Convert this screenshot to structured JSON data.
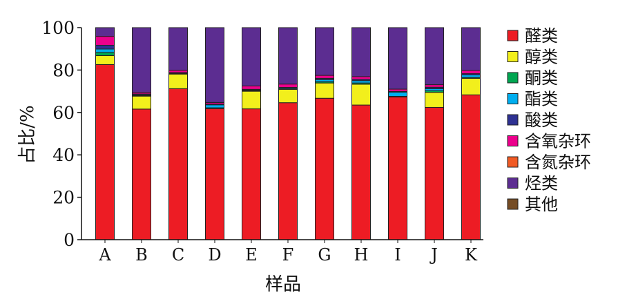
{
  "chart_data": {
    "type": "bar",
    "stacked": true,
    "title": "",
    "xlabel": "样品",
    "ylabel": "占比/%",
    "ylim": [
      0,
      100
    ],
    "yticks": [
      0,
      20,
      40,
      60,
      80,
      100
    ],
    "grid": false,
    "legend_position": "right",
    "categories": [
      "A",
      "B",
      "C",
      "D",
      "E",
      "F",
      "G",
      "H",
      "I",
      "J",
      "K"
    ],
    "series": [
      {
        "name": "醛类",
        "color": "#ed1c24",
        "values": [
          82.6,
          61.6,
          71.2,
          61.8,
          61.7,
          64.6,
          66.7,
          63.5,
          67.3,
          62.4,
          68.3
        ]
      },
      {
        "name": "醇类",
        "color": "#f2ef1c",
        "values": [
          4.2,
          6.1,
          6.9,
          0,
          8.3,
          6.3,
          7.2,
          9.8,
          0,
          7.1,
          7.8
        ]
      },
      {
        "name": "酮类",
        "color": "#00a651",
        "values": [
          1.5,
          0.3,
          0.2,
          0.4,
          0.3,
          0.2,
          0.6,
          0.6,
          0.3,
          0.7,
          0.4
        ]
      },
      {
        "name": "酯类",
        "color": "#00aeef",
        "values": [
          1.6,
          0.3,
          0.2,
          1.4,
          0.3,
          0.4,
          1.0,
          1.1,
          2.0,
          1.0,
          1.2
        ]
      },
      {
        "name": "酸类",
        "color": "#2e3192",
        "values": [
          1.8,
          0.4,
          0.3,
          0.4,
          0.3,
          0.3,
          0.6,
          0.6,
          0.3,
          0.7,
          0.6
        ]
      },
      {
        "name": "含氧杂环",
        "color": "#ec008c",
        "values": [
          4.2,
          0.7,
          1.1,
          0.7,
          1.6,
          1.6,
          1.4,
          1.3,
          1.1,
          1.2,
          1.5
        ]
      },
      {
        "name": "含氮杂环",
        "color": "#f15a24",
        "values": [
          0,
          0,
          0,
          0,
          0,
          0,
          0,
          0,
          0,
          0,
          0
        ]
      },
      {
        "name": "烃类",
        "color": "#5c2d91",
        "values": [
          4.1,
          30.6,
          20.1,
          35.3,
          27.5,
          26.6,
          22.5,
          23.1,
          29.0,
          26.9,
          20.2
        ]
      },
      {
        "name": "其他",
        "color": "#754c24",
        "values": [
          0,
          0,
          0,
          0,
          0,
          0,
          0,
          0,
          0,
          0,
          0
        ]
      }
    ]
  }
}
